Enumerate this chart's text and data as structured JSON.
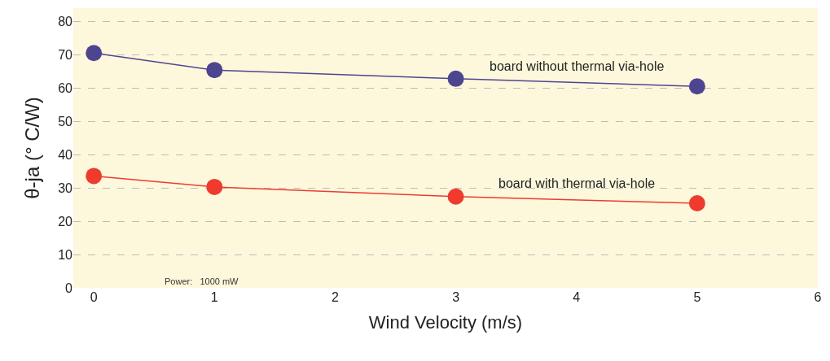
{
  "chart_data": {
    "type": "line",
    "xlabel": "Wind Velocity (m/s)",
    "ylabel": "θ-ja (° C/W)",
    "x": [
      0,
      1,
      3,
      5
    ],
    "series": [
      {
        "name": "board without thermal via-hole",
        "color": "#4e4591",
        "values": [
          70.5,
          65.4,
          62.8,
          60.5
        ]
      },
      {
        "name": "board with thermal via-hole",
        "color": "#ee3b2e",
        "values": [
          33.6,
          30.3,
          27.4,
          25.4
        ]
      }
    ],
    "xlim": [
      -0.17,
      6
    ],
    "xticks": [
      0,
      1,
      2,
      3,
      4,
      5,
      6
    ],
    "ylim": [
      0,
      84
    ],
    "yticks": [
      0,
      10,
      20,
      30,
      40,
      50,
      60,
      70,
      80
    ],
    "grid": "y",
    "legend": false,
    "marker": "circle",
    "line_style": "solid",
    "annotations": [
      "Power:   1000 mW"
    ]
  }
}
